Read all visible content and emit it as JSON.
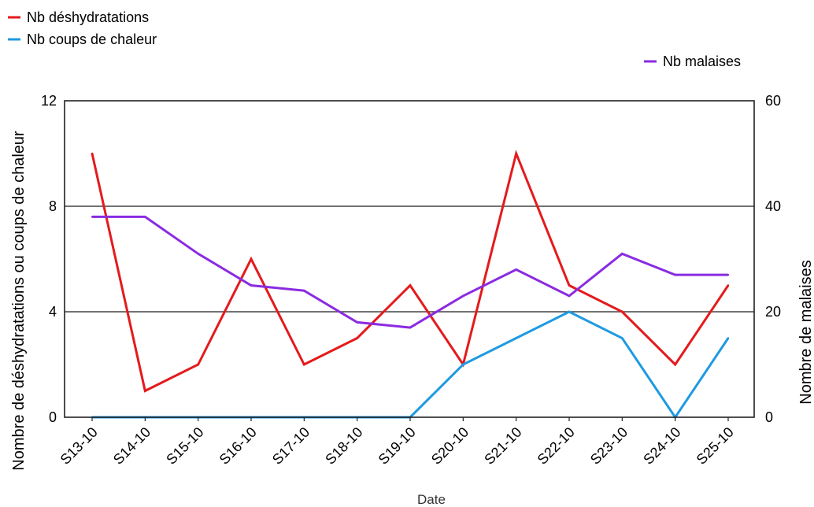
{
  "chart_data": {
    "type": "line",
    "xlabel": "Date",
    "ylabel_left": "Nombre de déshydratations ou coups de chaleur",
    "ylabel_right": "Nombre de malaises",
    "categories": [
      "S13-10",
      "S14-10",
      "S15-10",
      "S16-10",
      "S17-10",
      "S18-10",
      "S19-10",
      "S20-10",
      "S21-10",
      "S22-10",
      "S23-10",
      "S24-10",
      "S25-10"
    ],
    "ylim_left": [
      0,
      12
    ],
    "ylim_right": [
      0,
      60
    ],
    "yticks_left": [
      0,
      4,
      8,
      12
    ],
    "yticks_right": [
      0,
      20,
      40,
      60
    ],
    "grid": "horizontal",
    "series": [
      {
        "name": "Nb déshydratations",
        "axis": "left",
        "color": "#e41a1c",
        "values": [
          10,
          1,
          2,
          6,
          2,
          3,
          5,
          2,
          10,
          5,
          4,
          2,
          5
        ]
      },
      {
        "name": "Nb coups de chaleur",
        "axis": "left",
        "color": "#1f9ae0",
        "values": [
          0,
          0,
          0,
          0,
          0,
          0,
          0,
          2,
          3,
          4,
          3,
          0,
          3
        ]
      },
      {
        "name": "Nb malaises",
        "axis": "right",
        "color": "#8a2be2",
        "values": [
          38,
          38,
          31,
          25,
          24,
          18,
          17,
          23,
          28,
          23,
          31,
          27,
          27
        ]
      }
    ]
  }
}
